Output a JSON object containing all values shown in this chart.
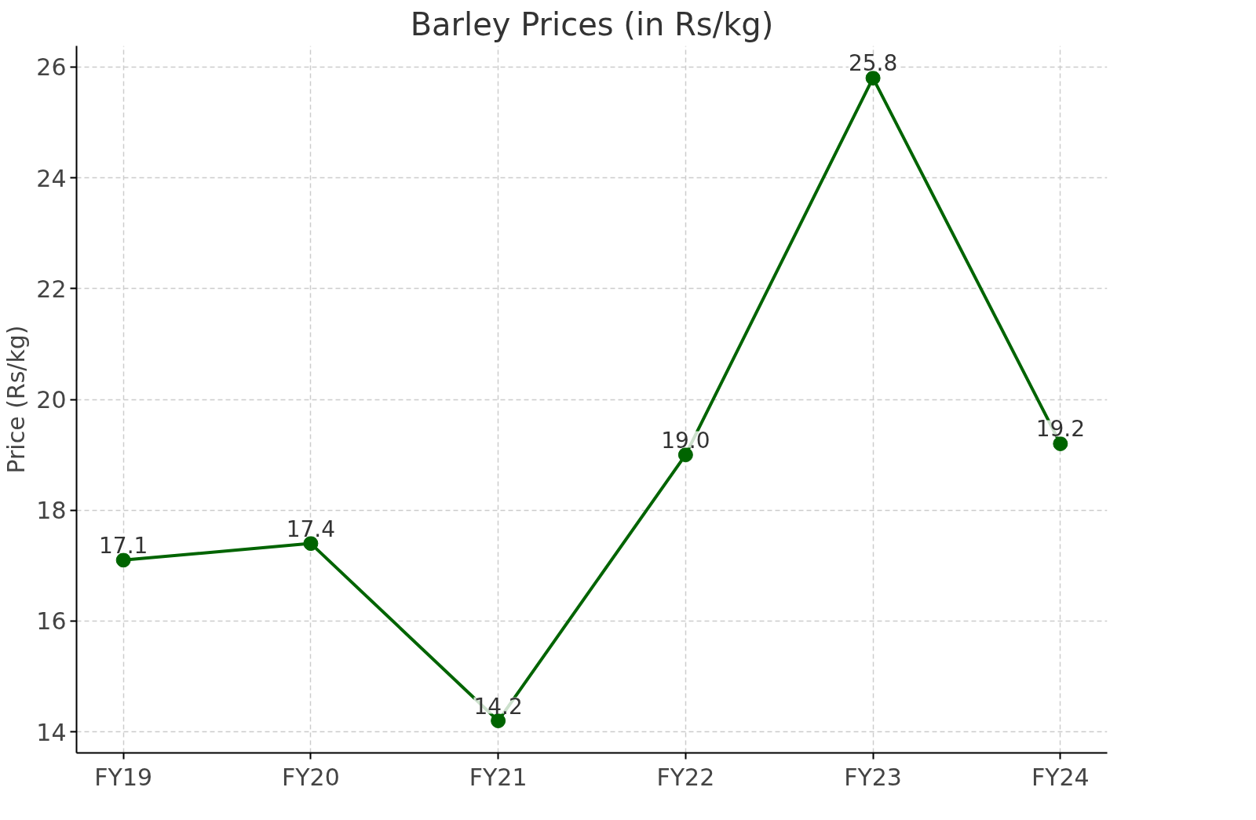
{
  "chart_data": {
    "type": "line",
    "title": "Barley Prices (in Rs/kg)",
    "ylabel": "Price (Rs/kg)",
    "categories": [
      "FY19",
      "FY20",
      "FY21",
      "FY22",
      "FY23",
      "FY24"
    ],
    "series": [
      {
        "color": "#006400",
        "values": [
          17.1,
          17.4,
          14.2,
          19.0,
          25.8,
          19.2
        ]
      }
    ],
    "ylim": [
      13.62,
      26.38
    ],
    "yticks": [
      14,
      16,
      18,
      20,
      22,
      24,
      26
    ],
    "value_labels": [
      "17.1",
      "17.4",
      "14.2",
      "19.0",
      "25.8",
      "19.2"
    ],
    "grid": true,
    "marker": "circle",
    "line_style": "solid"
  }
}
